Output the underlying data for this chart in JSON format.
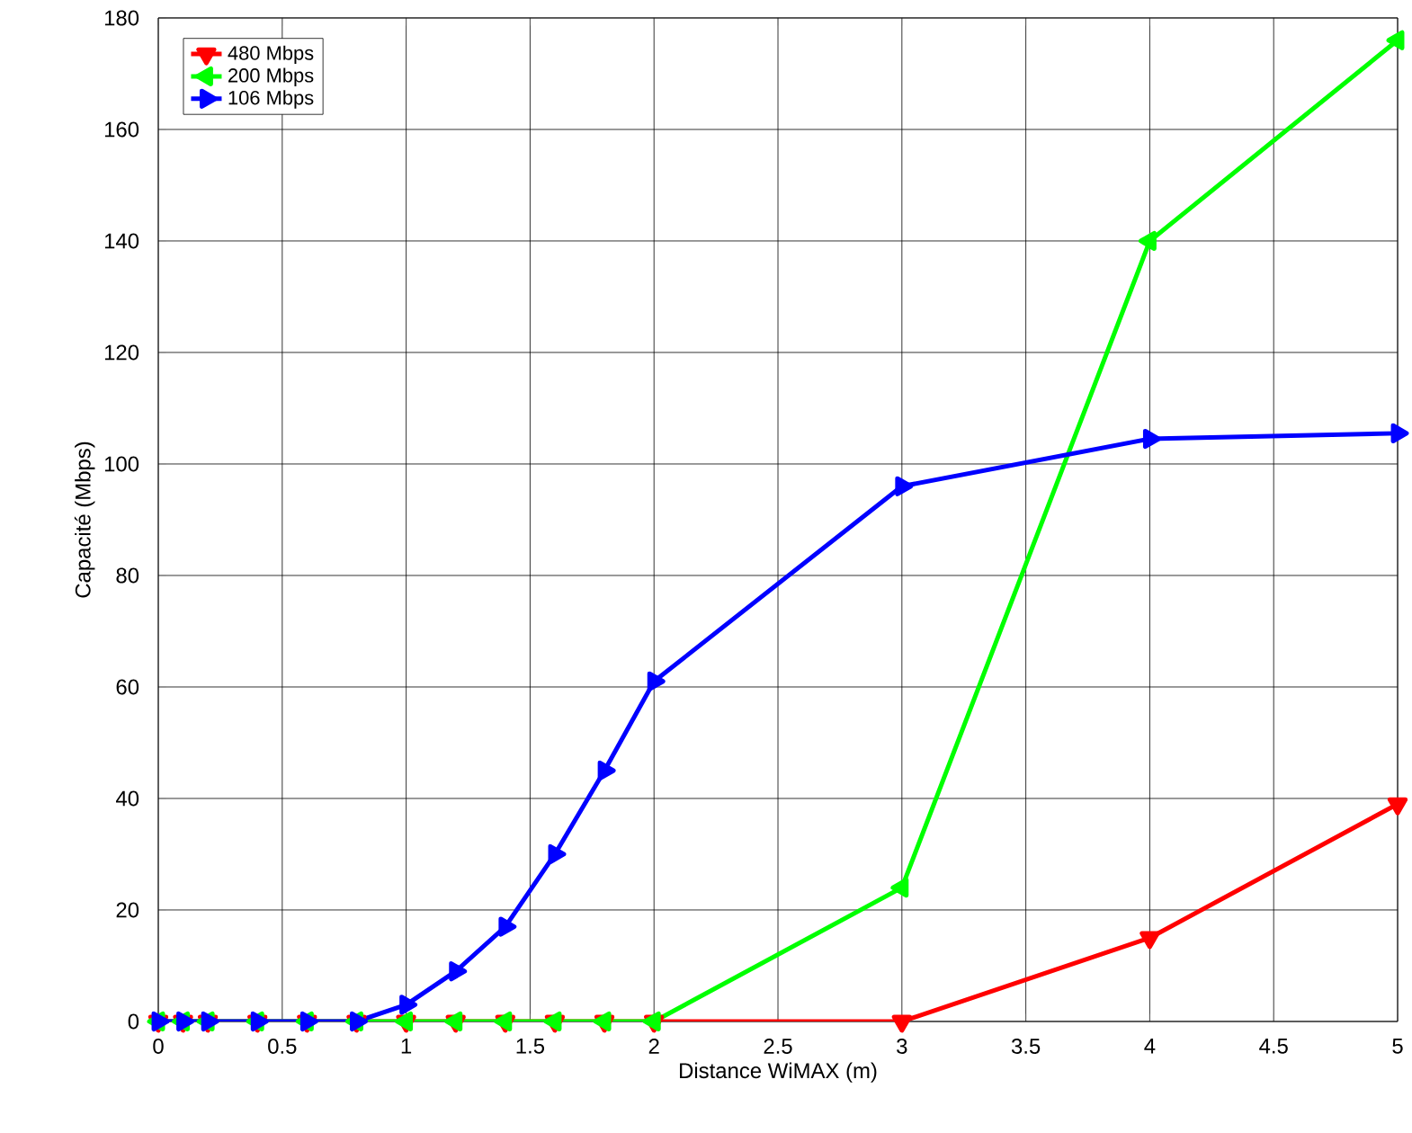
{
  "chart_data": {
    "type": "line",
    "xlabel": "Distance WiMAX (m)",
    "ylabel": "Capacité (Mbps)",
    "x": [
      0,
      0.1,
      0.2,
      0.4,
      0.6,
      0.8,
      1,
      1.2,
      1.4,
      1.6,
      1.8,
      2,
      3,
      4,
      5
    ],
    "series": [
      {
        "name": "480 Mbps",
        "color": "#ff0000",
        "values": [
          0,
          0,
          0,
          0,
          0,
          0,
          0,
          0,
          0,
          0,
          0,
          0,
          0,
          15,
          39
        ]
      },
      {
        "name": "200 Mbps",
        "color": "#00ff00",
        "values": [
          0,
          0,
          0,
          0,
          0,
          0,
          0,
          0,
          0,
          0,
          0,
          0,
          24,
          140,
          176
        ]
      },
      {
        "name": "106 Mbps",
        "color": "#0000ff",
        "values": [
          0,
          0,
          0,
          0,
          0,
          0,
          3,
          9,
          17,
          30,
          45,
          61,
          96,
          104.5,
          105.5
        ]
      }
    ],
    "xlim": [
      0,
      5
    ],
    "ylim": [
      0,
      180
    ],
    "xticks": [
      0,
      0.5,
      1,
      1.5,
      2,
      2.5,
      3,
      3.5,
      4,
      4.5,
      5
    ],
    "yticks": [
      0,
      20,
      40,
      60,
      80,
      100,
      120,
      140,
      160,
      180
    ],
    "grid": true,
    "legend": "top left",
    "marker": "triangle",
    "line_style": "solid"
  }
}
